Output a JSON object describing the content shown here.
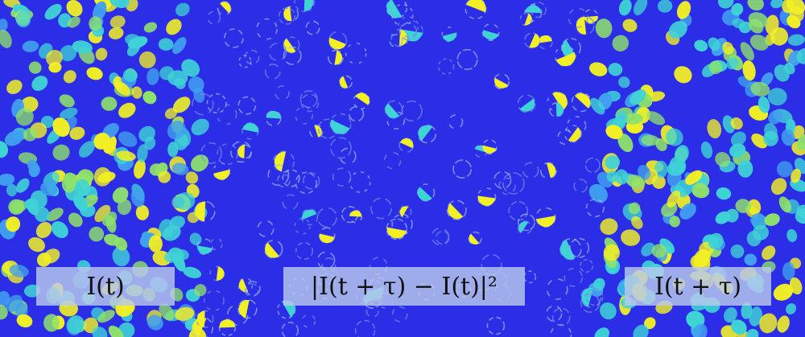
{
  "panels": [
    {
      "name": "left",
      "label": "I(t)"
    },
    {
      "name": "middle",
      "label": "|I(t + τ) − I(t)|²"
    },
    {
      "name": "right",
      "label": "I(t + τ)"
    }
  ],
  "colors": {
    "background": "#2b2ee6",
    "cell_bright": "#f2f024",
    "cell_mid": "#3fd3d6",
    "cell_low": "#41a0f0",
    "label_box": "#b9c8eb"
  }
}
